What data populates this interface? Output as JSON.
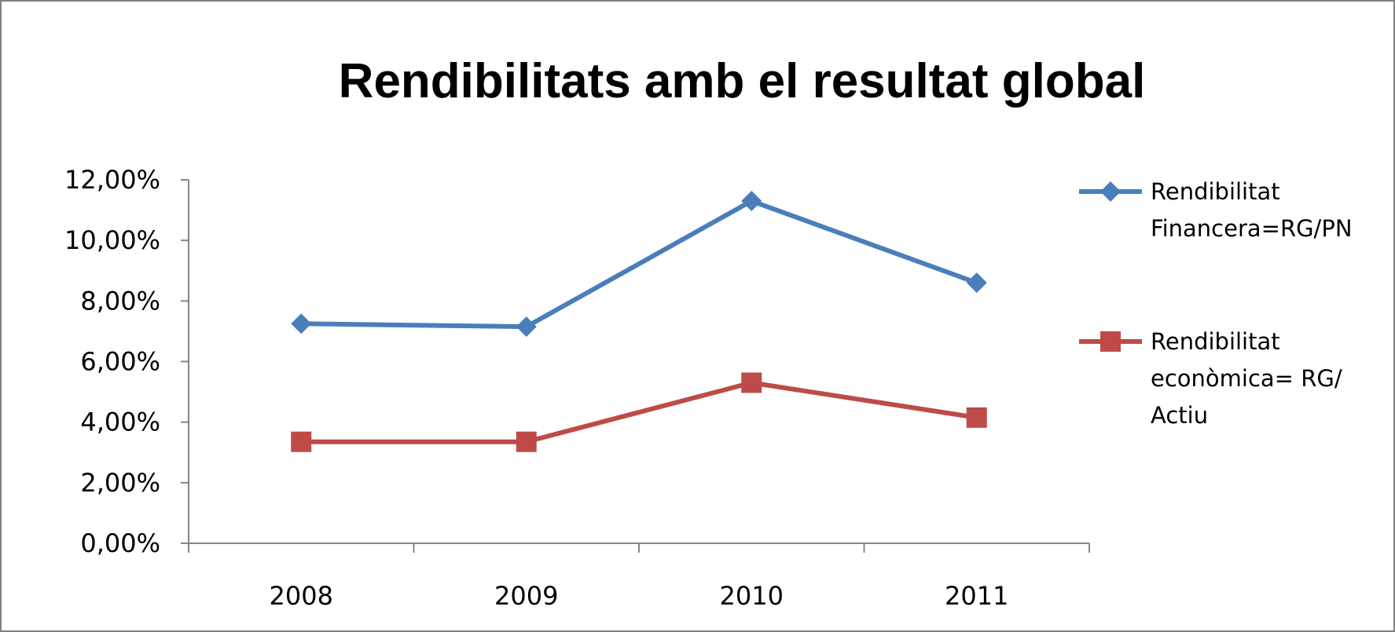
{
  "chart_data": {
    "type": "line",
    "title": "Rendibilitats amb el resultat global",
    "categories": [
      "2008",
      "2009",
      "2010",
      "2011"
    ],
    "ylim": [
      0,
      12
    ],
    "yticks": [
      0,
      2,
      4,
      6,
      8,
      10,
      12
    ],
    "ytick_labels": [
      "0,00%",
      "2,00%",
      "4,00%",
      "6,00%",
      "8,00%",
      "10,00%",
      "12,00%"
    ],
    "grid": false,
    "legend_position": "right",
    "series": [
      {
        "name": "Rendibilitat Financera=RG/PN",
        "legend_lines": [
          "Rendibilitat",
          "Financera=RG/PN"
        ],
        "values": [
          7.25,
          7.15,
          11.3,
          8.6
        ],
        "color": "#4a7ebb",
        "marker": "diamond"
      },
      {
        "name": "Rendibilitat econòmica= RG/ Actiu",
        "legend_lines": [
          "Rendibilitat",
          "econòmica= RG/",
          "Actiu"
        ],
        "values": [
          3.35,
          3.35,
          5.3,
          4.15
        ],
        "color": "#be4b48",
        "marker": "square"
      }
    ]
  }
}
